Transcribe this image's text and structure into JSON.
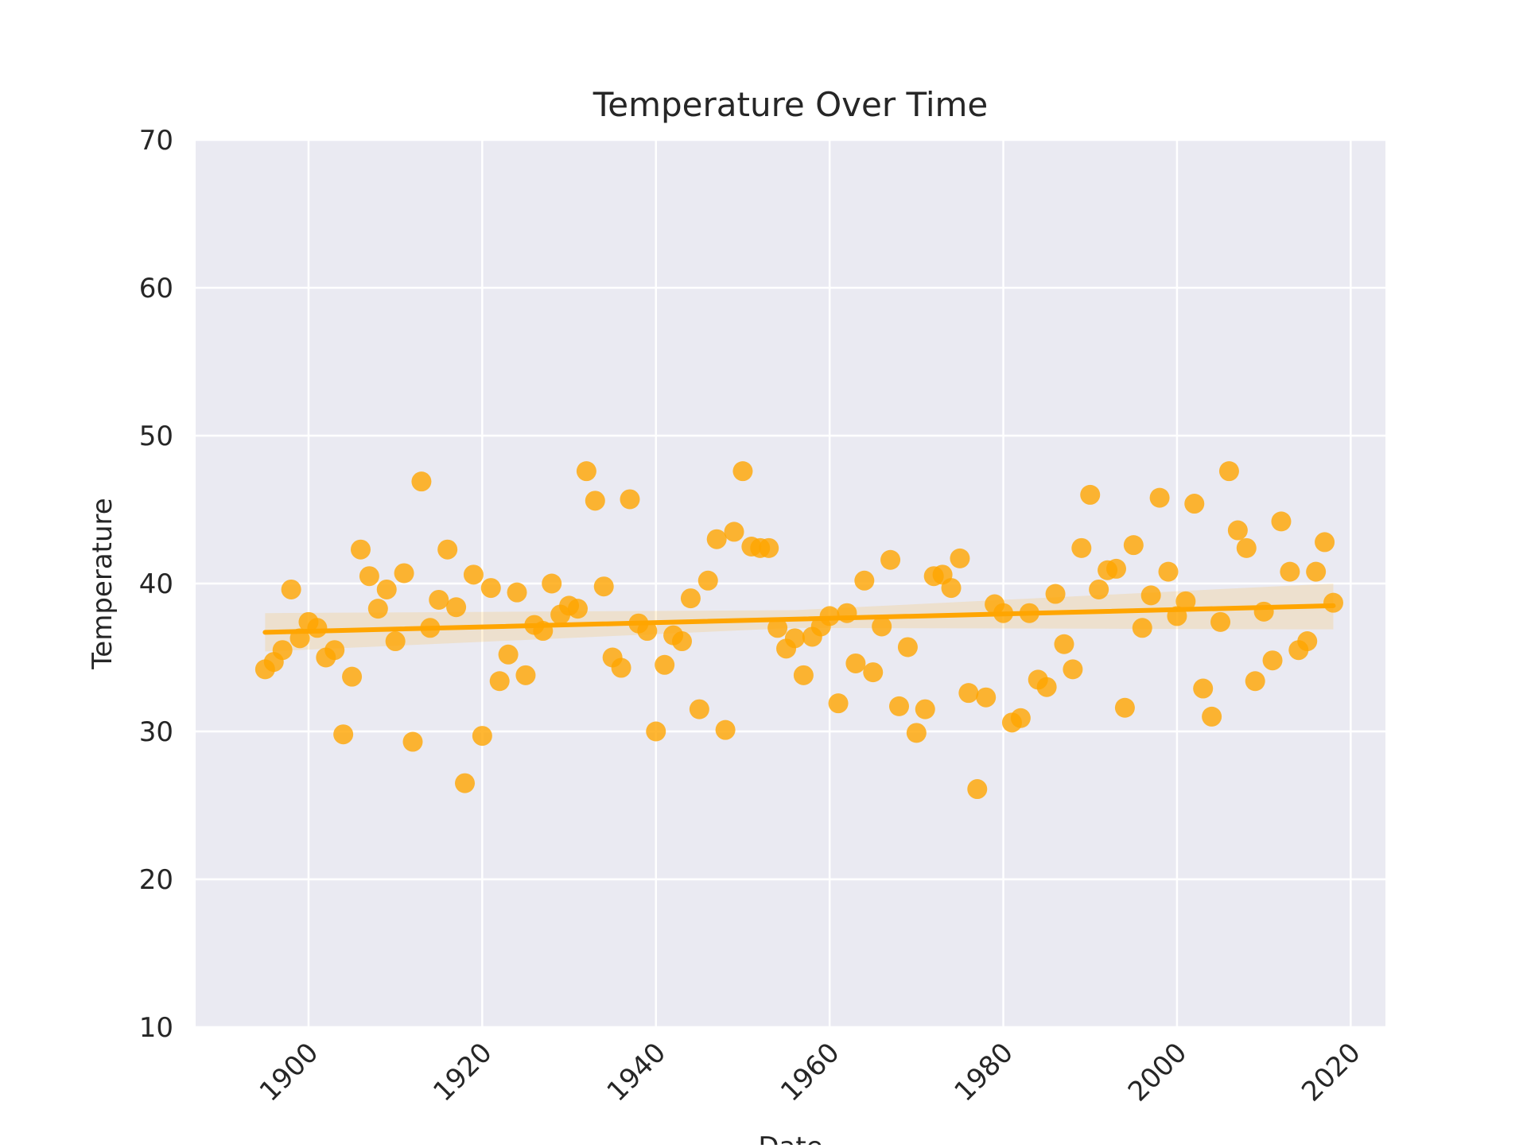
{
  "colors": {
    "figure_bg": "#ffffff",
    "plot_bg": "#eaeaf2",
    "grid": "#ffffff",
    "series": "#ffa500",
    "text": "#262626"
  },
  "chart_data": {
    "type": "scatter",
    "title": "Temperature Over Time",
    "xlabel": "Date",
    "ylabel": "Temperature",
    "xlim": [
      1887,
      2024
    ],
    "ylim": [
      10,
      70
    ],
    "xticks": [
      1900,
      1920,
      1940,
      1960,
      1980,
      2000,
      2020
    ],
    "yticks": [
      10,
      20,
      30,
      40,
      50,
      60,
      70
    ],
    "xtick_rotation": "45 degrees",
    "grid": true,
    "legend": "none",
    "series": [
      {
        "kind": "scatter",
        "x": [
          1895,
          1896,
          1897,
          1898,
          1899,
          1900,
          1901,
          1902,
          1903,
          1904,
          1905,
          1906,
          1907,
          1908,
          1909,
          1910,
          1911,
          1912,
          1913,
          1914,
          1915,
          1916,
          1917,
          1918,
          1919,
          1920,
          1921,
          1922,
          1923,
          1924,
          1925,
          1926,
          1927,
          1928,
          1929,
          1930,
          1931,
          1932,
          1933,
          1934,
          1935,
          1936,
          1937,
          1938,
          1939,
          1940,
          1941,
          1942,
          1943,
          1944,
          1945,
          1946,
          1947,
          1948,
          1949,
          1950,
          1951,
          1952,
          1953,
          1954,
          1955,
          1956,
          1957,
          1958,
          1959,
          1960,
          1961,
          1962,
          1963,
          1964,
          1965,
          1966,
          1967,
          1968,
          1969,
          1970,
          1971,
          1972,
          1973,
          1974,
          1975,
          1976,
          1977,
          1978,
          1979,
          1980,
          1981,
          1982,
          1983,
          1984,
          1985,
          1986,
          1987,
          1988,
          1989,
          1990,
          1991,
          1992,
          1993,
          1994,
          1995,
          1996,
          1997,
          1998,
          1999,
          2000,
          2001,
          2002,
          2003,
          2004,
          2005,
          2006,
          2007,
          2008,
          2009,
          2010,
          2011,
          2012,
          2013,
          2014,
          2015,
          2016,
          2017,
          2018
        ],
        "y": [
          34.2,
          34.7,
          35.5,
          39.6,
          36.3,
          37.4,
          37.0,
          35.0,
          35.5,
          29.8,
          33.7,
          42.3,
          40.5,
          38.3,
          39.6,
          36.1,
          40.7,
          29.3,
          46.9,
          37.0,
          38.9,
          42.3,
          38.4,
          26.5,
          40.6,
          29.7,
          39.7,
          33.4,
          35.2,
          39.4,
          33.8,
          37.2,
          36.8,
          40.0,
          37.9,
          38.5,
          38.3,
          47.6,
          45.6,
          39.8,
          35.0,
          34.3,
          45.7,
          37.3,
          36.8,
          30.0,
          34.5,
          36.5,
          36.1,
          39.0,
          31.5,
          40.2,
          43.0,
          30.1,
          43.5,
          47.6,
          42.5,
          42.4,
          42.4,
          37.0,
          35.6,
          36.3,
          33.8,
          36.4,
          37.1,
          37.8,
          31.9,
          38.0,
          34.6,
          40.2,
          34.0,
          37.1,
          41.6,
          31.7,
          35.7,
          29.9,
          31.5,
          40.5,
          40.6,
          39.7,
          41.7,
          32.6,
          26.1,
          32.3,
          38.6,
          38.0,
          30.6,
          30.9,
          38.0,
          33.5,
          33.0,
          39.3,
          35.9,
          34.2,
          42.4,
          46.0,
          39.6,
          40.9,
          41.0,
          31.6,
          42.6,
          37.0,
          39.2,
          45.8,
          40.8,
          37.8,
          38.8,
          45.4,
          32.9,
          31.0,
          37.4,
          47.6,
          43.6,
          42.4,
          33.4,
          38.1,
          34.8,
          44.2,
          40.8,
          35.5,
          36.1,
          40.8,
          42.8,
          38.7
        ]
      },
      {
        "kind": "regression",
        "x": [
          1895,
          2018
        ],
        "y": [
          36.7,
          38.5
        ]
      },
      {
        "kind": "confidence-band",
        "x": [
          1895,
          1956,
          2018
        ],
        "lower": [
          35.4,
          37.0,
          36.9
        ],
        "upper": [
          38.0,
          38.2,
          40.0
        ]
      }
    ]
  }
}
